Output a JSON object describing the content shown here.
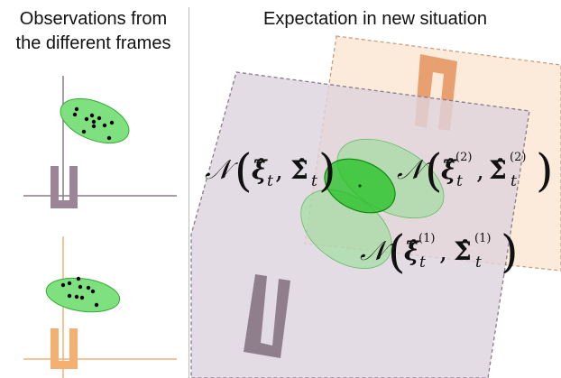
{
  "left_panel": {
    "title_line1": "Observations from",
    "title_line2": "the different frames"
  },
  "right_panel": {
    "title": "Expectation in new situation"
  },
  "formulas": {
    "product": {
      "n": "𝒩",
      "xi": "ξ̂",
      "sub_xi": "t",
      "sigma": "Σ̂",
      "sub_sigma": "t"
    },
    "frame2": {
      "n": "𝒩",
      "xi": "ξ̂",
      "sub_xi": "t",
      "sup_xi": "(2)",
      "sigma": "Σ̂",
      "sub_sigma": "t",
      "sup_sigma": "(2)"
    },
    "frame1": {
      "n": "𝒩",
      "xi": "ξ̂",
      "sub_xi": "t",
      "sup_xi": "(1)",
      "sigma": "Σ̂",
      "sub_sigma": "t",
      "sup_sigma": "(1)"
    }
  },
  "colors": {
    "frame1_purple": "#9b8597",
    "frame2_orange": "#f0b07a",
    "gaussian_green": "#7fe07f",
    "gaussian_dark_green": "#22bb22"
  }
}
